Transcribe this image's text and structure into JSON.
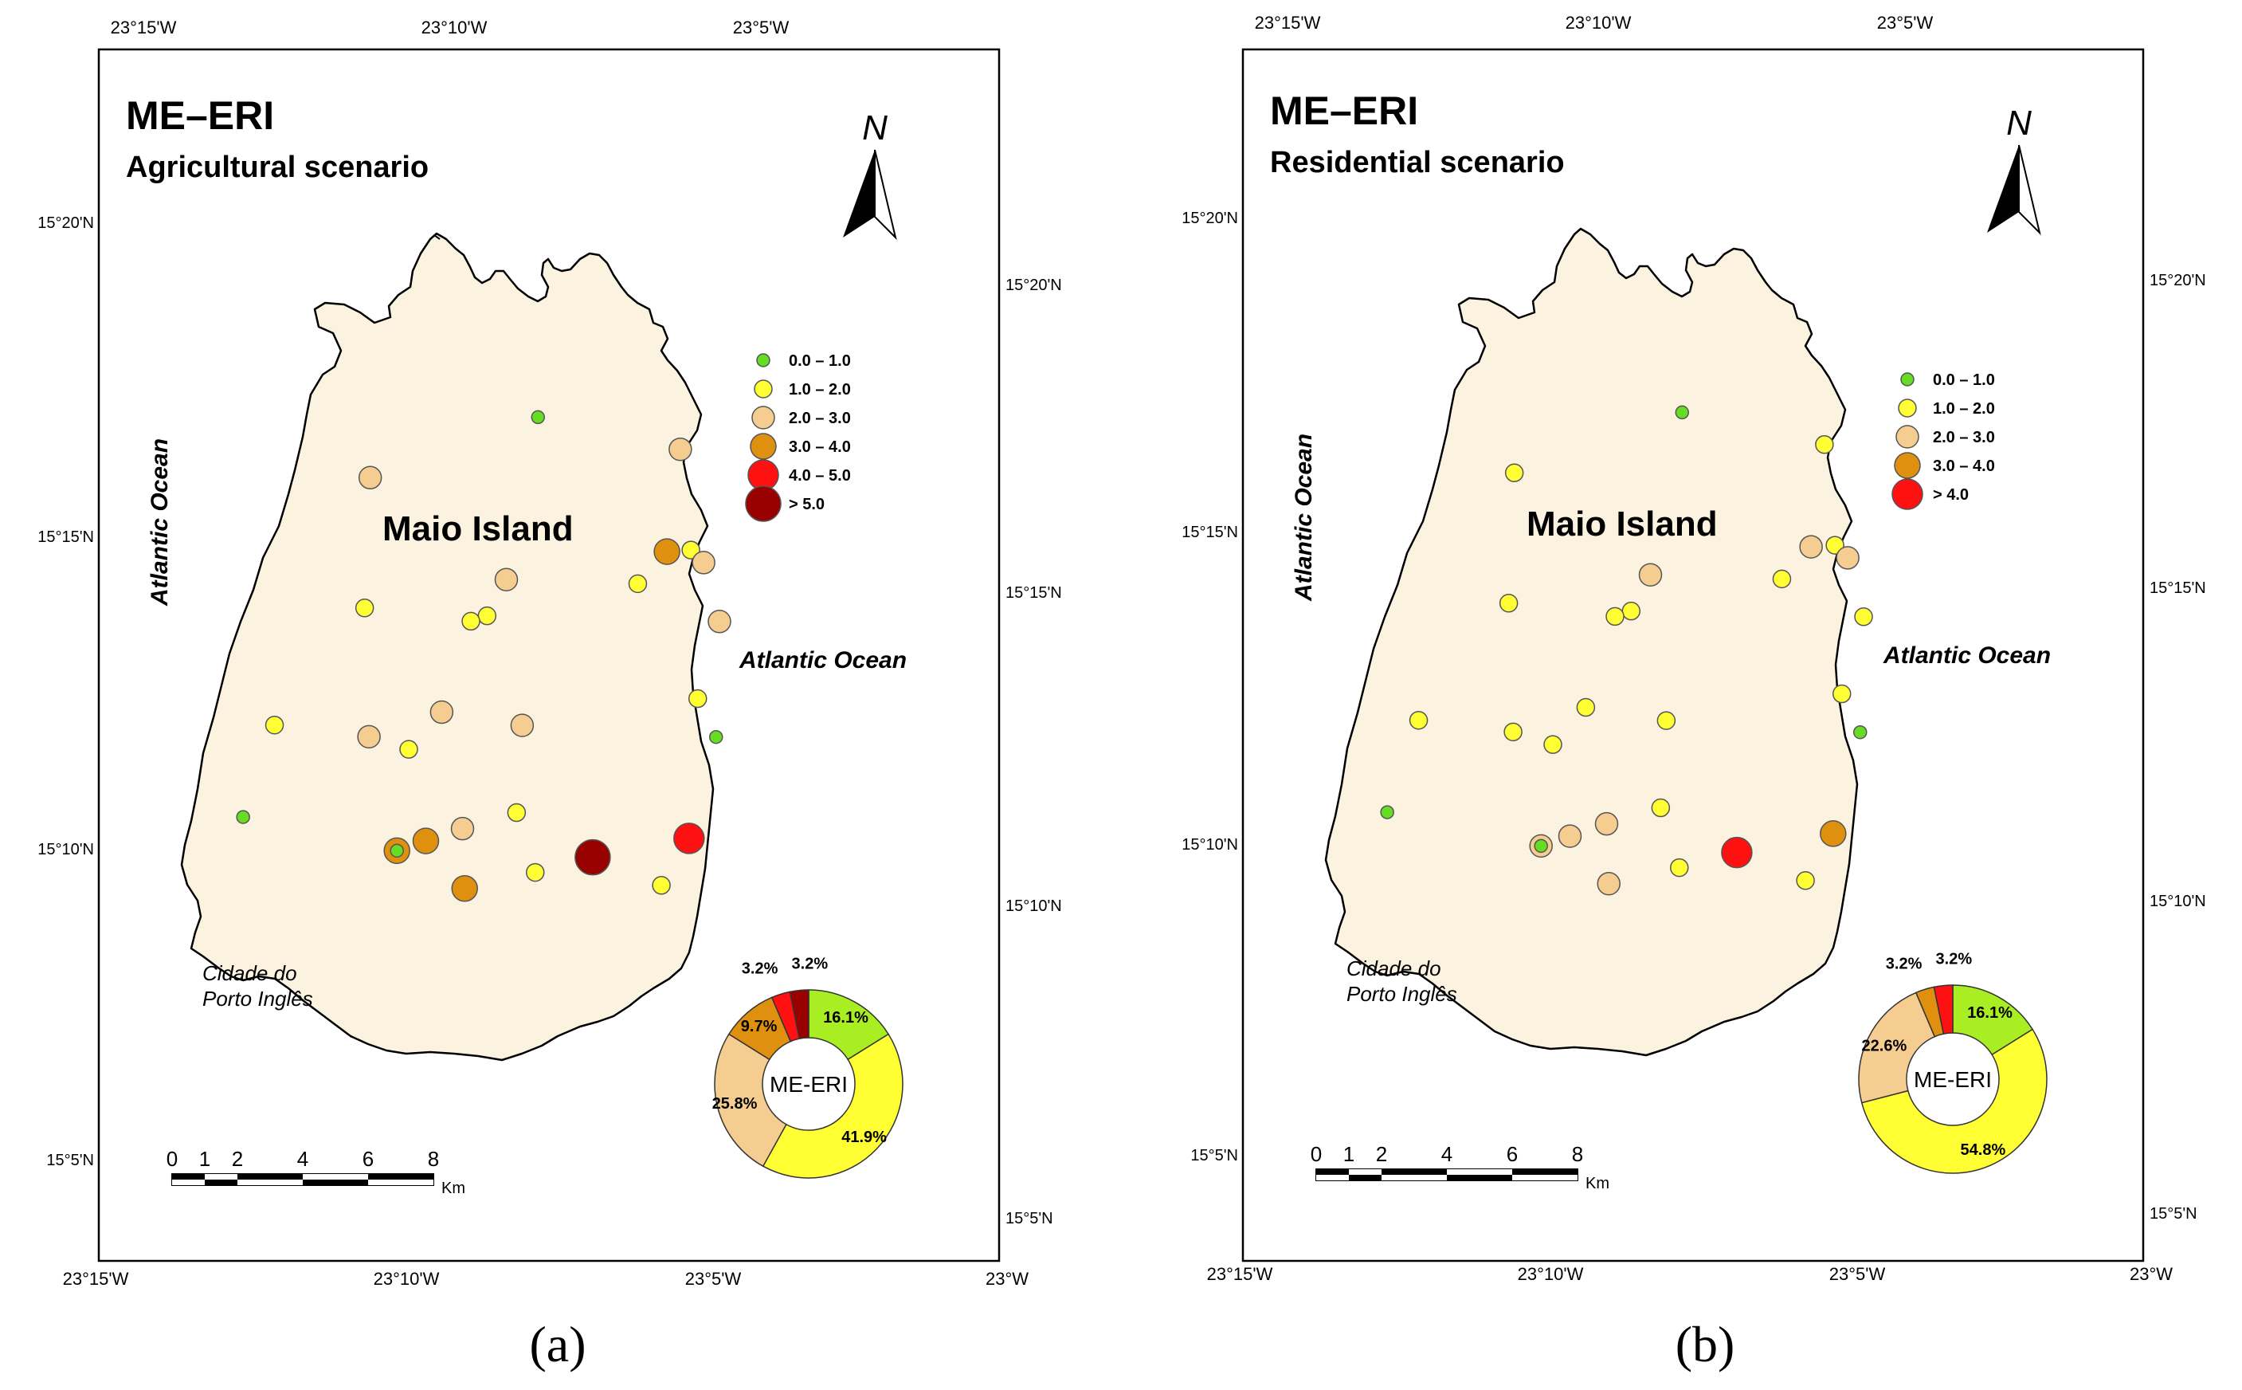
{
  "panels": [
    {
      "id": "a",
      "caption": "(a)",
      "title": "ME–ERI",
      "subtitle": "Agricultural scenario",
      "island_label": "Maio Island",
      "ocean_west": "Atlantic Ocean",
      "ocean_east": "Atlantic Ocean",
      "town_line1": "Cidade do",
      "town_line2": "Porto Inglês",
      "north_label": "N",
      "scale_ticks": [
        "0",
        "1",
        "2",
        "4",
        "6",
        "8"
      ],
      "scale_unit": "Km",
      "top_lon_labels": [
        "23°15'W",
        "23°10'W",
        "23°5'W"
      ],
      "bottom_lon_labels": [
        "23°15'W",
        "23°10'W",
        "23°5'W",
        "23°W"
      ],
      "left_lat_labels": [
        "15°20'N",
        "15°15'N",
        "15°10'N",
        "15°5'N"
      ],
      "right_lat_labels": [
        "15°20'N",
        "15°15'N",
        "15°10'N",
        "15°5'N"
      ],
      "legend": [
        {
          "label": "0.0 – 1.0",
          "color": "#66dd22"
        },
        {
          "label": "1.0 – 2.0",
          "color": "#ffff33"
        },
        {
          "label": "2.0 – 3.0",
          "color": "#f5cd90"
        },
        {
          "label": "3.0 – 4.0",
          "color": "#e0900f"
        },
        {
          "label": "4.0 – 5.0",
          "color": "#ff1111"
        },
        {
          "label": "> 5.0",
          "color": "#990000"
        }
      ],
      "donut": {
        "center_label": "ME-ERI",
        "slices": [
          {
            "class": "0.0 – 1.0",
            "value": 16.1,
            "label": "16.1%",
            "color": "#a8ee22"
          },
          {
            "class": "1.0 – 2.0",
            "value": 41.9,
            "label": "41.9%",
            "color": "#ffff33"
          },
          {
            "class": "2.0 – 3.0",
            "value": 25.8,
            "label": "25.8%",
            "color": "#f5cd90"
          },
          {
            "class": "3.0 – 4.0",
            "value": 9.7,
            "label": "9.7%",
            "color": "#e0900f"
          },
          {
            "class": "4.0 – 5.0",
            "value": 3.2,
            "label": "3.2%",
            "color": "#ff1111"
          },
          {
            "class": "> 5.0",
            "value": 3.2,
            "label": "3.2%",
            "color": "#990000"
          }
        ]
      },
      "sites": [
        {
          "lon": -23.1557,
          "lat": 15.2789,
          "cls": 0
        },
        {
          "lon": -23.1099,
          "lat": 15.2687,
          "cls": 2
        },
        {
          "lon": -23.2097,
          "lat": 15.2597,
          "cls": 2
        },
        {
          "lon": -23.1142,
          "lat": 15.2362,
          "cls": 3
        },
        {
          "lon": -23.1065,
          "lat": 15.2367,
          "cls": 1
        },
        {
          "lon": -23.1024,
          "lat": 15.2327,
          "cls": 2
        },
        {
          "lon": -23.1659,
          "lat": 15.2273,
          "cls": 2
        },
        {
          "lon": -23.1236,
          "lat": 15.226,
          "cls": 1
        },
        {
          "lon": -23.2115,
          "lat": 15.2183,
          "cls": 1
        },
        {
          "lon": -23.1721,
          "lat": 15.2158,
          "cls": 1
        },
        {
          "lon": -23.1773,
          "lat": 15.2141,
          "cls": 1
        },
        {
          "lon": -23.0973,
          "lat": 15.214,
          "cls": 2
        },
        {
          "lon": -23.1043,
          "lat": 15.1895,
          "cls": 1
        },
        {
          "lon": -23.1867,
          "lat": 15.1852,
          "cls": 2
        },
        {
          "lon": -23.2405,
          "lat": 15.1811,
          "cls": 1
        },
        {
          "lon": -23.1608,
          "lat": 15.181,
          "cls": 2
        },
        {
          "lon": -23.2101,
          "lat": 15.1774,
          "cls": 2
        },
        {
          "lon": -23.0984,
          "lat": 15.1773,
          "cls": 0
        },
        {
          "lon": -23.1973,
          "lat": 15.1734,
          "cls": 1
        },
        {
          "lon": -23.2506,
          "lat": 15.1519,
          "cls": 0
        },
        {
          "lon": -23.1626,
          "lat": 15.1533,
          "cls": 1
        },
        {
          "lon": -23.18,
          "lat": 15.1482,
          "cls": 2
        },
        {
          "lon": -23.1918,
          "lat": 15.1443,
          "cls": 3
        },
        {
          "lon": -23.2011,
          "lat": 15.1412,
          "cls": 3
        },
        {
          "lon": -23.2011,
          "lat": 15.1412,
          "cls": 0
        },
        {
          "lon": -23.1071,
          "lat": 15.1451,
          "cls": 4
        },
        {
          "lon": -23.1381,
          "lat": 15.1391,
          "cls": 5
        },
        {
          "lon": -23.1566,
          "lat": 15.1343,
          "cls": 1
        },
        {
          "lon": -23.1793,
          "lat": 15.1292,
          "cls": 3
        },
        {
          "lon": -23.116,
          "lat": 15.1302,
          "cls": 1
        }
      ]
    },
    {
      "id": "b",
      "caption": "(b)",
      "title": "ME–ERI",
      "subtitle": "Residential scenario",
      "island_label": "Maio Island",
      "ocean_west": "Atlantic Ocean",
      "ocean_east": "Atlantic Ocean",
      "town_line1": "Cidade do",
      "town_line2": "Porto Inglês",
      "north_label": "N",
      "scale_ticks": [
        "0",
        "1",
        "2",
        "4",
        "6",
        "8"
      ],
      "scale_unit": "Km",
      "top_lon_labels": [
        "23°15'W",
        "23°10'W",
        "23°5'W"
      ],
      "bottom_lon_labels": [
        "23°15'W",
        "23°10'W",
        "23°5'W",
        "23°W"
      ],
      "left_lat_labels": [
        "15°20'N",
        "15°15'N",
        "15°10'N",
        "15°5'N"
      ],
      "right_lat_labels": [
        "15°20'N",
        "15°15'N",
        "15°10'N",
        "15°5'N"
      ],
      "legend": [
        {
          "label": "0.0 – 1.0",
          "color": "#66dd22"
        },
        {
          "label": "1.0 – 2.0",
          "color": "#ffff33"
        },
        {
          "label": "2.0 – 3.0",
          "color": "#f5cd90"
        },
        {
          "label": "3.0 – 4.0",
          "color": "#e0900f"
        },
        {
          "label": "> 4.0",
          "color": "#ff1111"
        }
      ],
      "donut": {
        "center_label": "ME-ERI",
        "slices": [
          {
            "class": "0.0 – 1.0",
            "value": 16.1,
            "label": "16.1%",
            "color": "#a8ee22"
          },
          {
            "class": "1.0 – 2.0",
            "value": 54.8,
            "label": "54.8%",
            "color": "#ffff33"
          },
          {
            "class": "2.0 – 3.0",
            "value": 22.6,
            "label": "22.6%",
            "color": "#f5cd90"
          },
          {
            "class": "3.0 – 4.0",
            "value": 3.2,
            "label": "3.2%",
            "color": "#e0900f"
          },
          {
            "class": "> 4.0",
            "value": 3.2,
            "label": "3.2%",
            "color": "#ff1111"
          }
        ]
      },
      "sites": [
        {
          "lon": -23.1557,
          "lat": 15.2789,
          "cls": 0
        },
        {
          "lon": -23.1099,
          "lat": 15.2687,
          "cls": 1
        },
        {
          "lon": -23.2097,
          "lat": 15.2597,
          "cls": 1
        },
        {
          "lon": -23.1142,
          "lat": 15.2362,
          "cls": 2
        },
        {
          "lon": -23.1065,
          "lat": 15.2367,
          "cls": 1
        },
        {
          "lon": -23.1024,
          "lat": 15.2327,
          "cls": 2
        },
        {
          "lon": -23.1659,
          "lat": 15.2273,
          "cls": 2
        },
        {
          "lon": -23.1236,
          "lat": 15.226,
          "cls": 1
        },
        {
          "lon": -23.2115,
          "lat": 15.2183,
          "cls": 1
        },
        {
          "lon": -23.1721,
          "lat": 15.2158,
          "cls": 1
        },
        {
          "lon": -23.1773,
          "lat": 15.2141,
          "cls": 1
        },
        {
          "lon": -23.0973,
          "lat": 15.214,
          "cls": 1
        },
        {
          "lon": -23.1043,
          "lat": 15.1895,
          "cls": 1
        },
        {
          "lon": -23.1867,
          "lat": 15.1852,
          "cls": 1
        },
        {
          "lon": -23.2405,
          "lat": 15.1811,
          "cls": 1
        },
        {
          "lon": -23.1608,
          "lat": 15.181,
          "cls": 1
        },
        {
          "lon": -23.2101,
          "lat": 15.1774,
          "cls": 1
        },
        {
          "lon": -23.0984,
          "lat": 15.1773,
          "cls": 0
        },
        {
          "lon": -23.1973,
          "lat": 15.1734,
          "cls": 1
        },
        {
          "lon": -23.2506,
          "lat": 15.1519,
          "cls": 0
        },
        {
          "lon": -23.1626,
          "lat": 15.1533,
          "cls": 1
        },
        {
          "lon": -23.18,
          "lat": 15.1482,
          "cls": 2
        },
        {
          "lon": -23.1918,
          "lat": 15.1443,
          "cls": 2
        },
        {
          "lon": -23.2011,
          "lat": 15.1412,
          "cls": 2
        },
        {
          "lon": -23.2011,
          "lat": 15.1412,
          "cls": 0
        },
        {
          "lon": -23.1071,
          "lat": 15.1451,
          "cls": 3
        },
        {
          "lon": -23.1381,
          "lat": 15.1391,
          "cls": 4
        },
        {
          "lon": -23.1566,
          "lat": 15.1343,
          "cls": 1
        },
        {
          "lon": -23.1793,
          "lat": 15.1292,
          "cls": 2
        },
        {
          "lon": -23.116,
          "lat": 15.1302,
          "cls": 1
        }
      ]
    }
  ]
}
